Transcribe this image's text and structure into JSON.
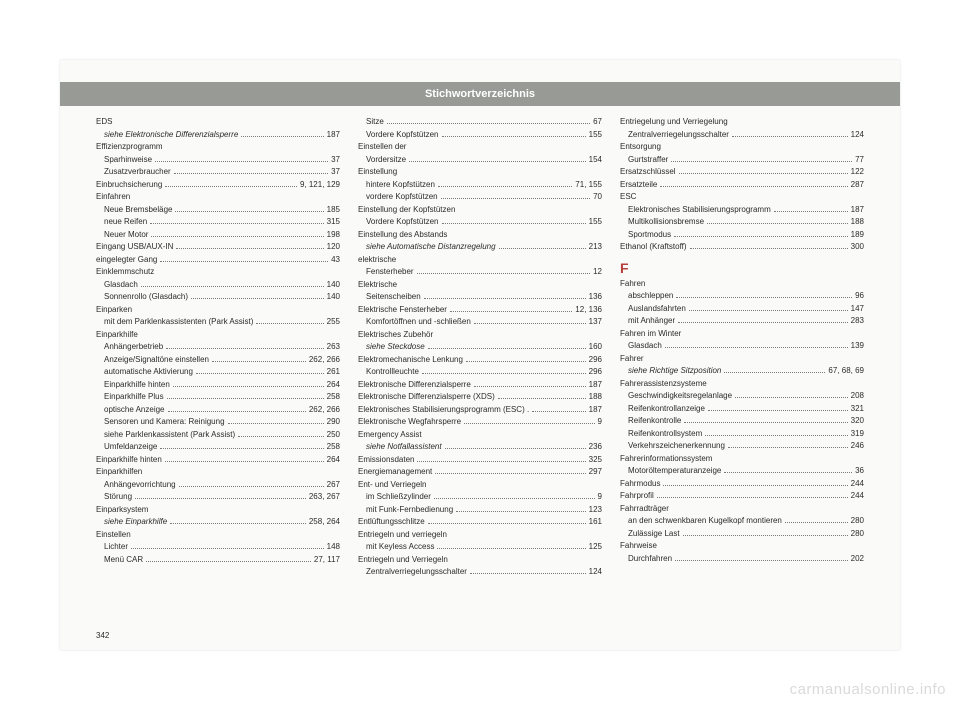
{
  "header": {
    "title": "Stichwortverzeichnis"
  },
  "pageNumber": "342",
  "watermark": "carmanualsonline.info",
  "sectionLetter": "F",
  "columns": [
    [
      {
        "t": "head",
        "label": "EDS"
      },
      {
        "t": "sub",
        "italic": true,
        "label": "siehe Elektronische Differenzialsperre",
        "pg": "187"
      },
      {
        "t": "head",
        "label": "Effizienzprogramm"
      },
      {
        "t": "sub",
        "label": "Sparhinweise",
        "pg": "37"
      },
      {
        "t": "sub",
        "label": "Zusatzverbraucher",
        "pg": "37"
      },
      {
        "t": "row",
        "label": "Einbruchsicherung",
        "pg": "9, 121, 129"
      },
      {
        "t": "head",
        "label": "Einfahren"
      },
      {
        "t": "sub",
        "label": "Neue Bremsbeläge",
        "pg": "185"
      },
      {
        "t": "sub",
        "label": "neue Reifen",
        "pg": "315"
      },
      {
        "t": "sub",
        "label": "Neuer Motor",
        "pg": "198"
      },
      {
        "t": "row",
        "label": "Eingang USB/AUX-IN",
        "pg": "120"
      },
      {
        "t": "row",
        "label": "eingelegter Gang",
        "pg": "43"
      },
      {
        "t": "head",
        "label": "Einklemmschutz"
      },
      {
        "t": "sub",
        "label": "Glasdach",
        "pg": "140"
      },
      {
        "t": "sub",
        "label": "Sonnenrollo (Glasdach)",
        "pg": "140"
      },
      {
        "t": "head",
        "label": "Einparken"
      },
      {
        "t": "sub",
        "label": "mit dem Parklenkassistenten (Park Assist)",
        "pg": "255"
      },
      {
        "t": "head",
        "label": "Einparkhilfe"
      },
      {
        "t": "sub",
        "label": "Anhängerbetrieb",
        "pg": "263"
      },
      {
        "t": "sub",
        "label": "Anzeige/Signaltöne einstellen",
        "pg": "262, 266"
      },
      {
        "t": "sub",
        "label": "automatische Aktivierung",
        "pg": "261"
      },
      {
        "t": "sub",
        "label": "Einparkhilfe hinten",
        "pg": "264"
      },
      {
        "t": "sub",
        "label": "Einparkhilfe Plus",
        "pg": "258"
      },
      {
        "t": "sub",
        "label": "optische Anzeige",
        "pg": "262, 266"
      },
      {
        "t": "sub",
        "label": "Sensoren und Kamera: Reinigung",
        "pg": "290"
      },
      {
        "t": "sub",
        "label": "siehe Parklenkassistent (Park Assist)",
        "pg": "250"
      },
      {
        "t": "sub",
        "label": "Umfeldanzeige",
        "pg": "258"
      },
      {
        "t": "row",
        "label": "Einparkhilfe hinten",
        "pg": "264"
      },
      {
        "t": "head",
        "label": "Einparkhilfen"
      },
      {
        "t": "sub",
        "label": "Anhängevorrichtung",
        "pg": "267"
      },
      {
        "t": "sub",
        "label": "Störung",
        "pg": "263, 267"
      },
      {
        "t": "head",
        "label": "Einparksystem"
      },
      {
        "t": "sub",
        "italic": true,
        "label": "siehe Einparkhilfe",
        "pg": "258, 264"
      },
      {
        "t": "head",
        "label": "Einstellen"
      },
      {
        "t": "sub",
        "label": "Lichter",
        "pg": "148"
      },
      {
        "t": "sub",
        "label": "Menü CAR",
        "pg": "27, 117"
      }
    ],
    [
      {
        "t": "sub",
        "label": "Sitze",
        "pg": "67"
      },
      {
        "t": "sub",
        "label": "Vordere Kopfstützen",
        "pg": "155"
      },
      {
        "t": "head",
        "label": "Einstellen der"
      },
      {
        "t": "sub",
        "label": "Vordersitze",
        "pg": "154"
      },
      {
        "t": "head",
        "label": "Einstellung"
      },
      {
        "t": "sub",
        "label": "hintere Kopfstützen",
        "pg": "71, 155"
      },
      {
        "t": "sub",
        "label": "vordere Kopfstützen",
        "pg": "70"
      },
      {
        "t": "head",
        "label": "Einstellung der Kopfstützen"
      },
      {
        "t": "sub",
        "label": "Vordere Kopfstützen",
        "pg": "155"
      },
      {
        "t": "head",
        "label": "Einstellung des Abstands"
      },
      {
        "t": "sub",
        "italic": true,
        "label": "siehe Automatische Distanzregelung",
        "pg": "213"
      },
      {
        "t": "head",
        "label": "elektrische"
      },
      {
        "t": "sub",
        "label": "Fensterheber",
        "pg": "12"
      },
      {
        "t": "head",
        "label": "Elektrische"
      },
      {
        "t": "sub",
        "label": "Seitenscheiben",
        "pg": "136"
      },
      {
        "t": "row",
        "label": "Elektrische Fensterheber",
        "pg": "12, 136"
      },
      {
        "t": "sub",
        "label": "Komfortöffnen und -schließen",
        "pg": "137"
      },
      {
        "t": "head",
        "label": "Elektrisches Zubehör"
      },
      {
        "t": "sub",
        "italic": true,
        "label": "siehe Steckdose",
        "pg": "160"
      },
      {
        "t": "row",
        "label": "Elektromechanische Lenkung",
        "pg": "296"
      },
      {
        "t": "sub",
        "label": "Kontrollleuchte",
        "pg": "296"
      },
      {
        "t": "row",
        "label": "Elektronische Differenzialsperre",
        "pg": "187"
      },
      {
        "t": "row",
        "label": "Elektronische Differenzialsperre (XDS)",
        "pg": "188"
      },
      {
        "t": "row",
        "label": "Elektronisches Stabilisierungsprogramm (ESC) .",
        "pg": "187"
      },
      {
        "t": "row",
        "label": "Elektronische Wegfahrsperre",
        "pg": "9"
      },
      {
        "t": "head",
        "label": "Emergency Assist"
      },
      {
        "t": "sub",
        "italic": true,
        "label": "siehe Notfallassistent",
        "pg": "236"
      },
      {
        "t": "row",
        "label": "Emissionsdaten",
        "pg": "325"
      },
      {
        "t": "row",
        "label": "Energiemanagement",
        "pg": "297"
      },
      {
        "t": "head",
        "label": "Ent- und Verriegeln"
      },
      {
        "t": "sub",
        "label": "im Schließzylinder",
        "pg": "9"
      },
      {
        "t": "sub",
        "label": "mit Funk-Fernbedienung",
        "pg": "123"
      },
      {
        "t": "row",
        "label": "Entlüftungsschlitze",
        "pg": "161"
      },
      {
        "t": "head",
        "label": "Entriegeln und verriegeln"
      },
      {
        "t": "sub",
        "label": "mit Keyless Access",
        "pg": "125"
      },
      {
        "t": "head",
        "label": "Entriegeln und Verriegeln"
      },
      {
        "t": "sub",
        "label": "Zentralverriegelungsschalter",
        "pg": "124"
      }
    ],
    [
      {
        "t": "head",
        "label": "Entriegelung und Verriegelung"
      },
      {
        "t": "sub",
        "label": "Zentralverriegelungsschalter",
        "pg": "124"
      },
      {
        "t": "head",
        "label": "Entsorgung"
      },
      {
        "t": "sub",
        "label": "Gurtstraffer",
        "pg": "77"
      },
      {
        "t": "row",
        "label": "Ersatzschlüssel",
        "pg": "122"
      },
      {
        "t": "row",
        "label": "Ersatzteile",
        "pg": "287"
      },
      {
        "t": "head",
        "label": "ESC"
      },
      {
        "t": "sub",
        "label": "Elektronisches Stabilisierungsprogramm",
        "pg": "187"
      },
      {
        "t": "sub",
        "label": "Multikollisionsbremse",
        "pg": "188"
      },
      {
        "t": "sub",
        "label": "Sportmodus",
        "pg": "189"
      },
      {
        "t": "row",
        "label": "Ethanol (Kraftstoff)",
        "pg": "300"
      },
      {
        "t": "letter"
      },
      {
        "t": "head",
        "label": "Fahren"
      },
      {
        "t": "sub",
        "label": "abschleppen",
        "pg": "96"
      },
      {
        "t": "sub",
        "label": "Auslandsfahrten",
        "pg": "147"
      },
      {
        "t": "sub",
        "label": "mit Anhänger",
        "pg": "283"
      },
      {
        "t": "head",
        "label": "Fahren im Winter"
      },
      {
        "t": "sub",
        "label": "Glasdach",
        "pg": "139"
      },
      {
        "t": "head",
        "label": "Fahrer"
      },
      {
        "t": "sub",
        "italic": true,
        "label": "siehe Richtige Sitzposition",
        "pg": "67, 68, 69"
      },
      {
        "t": "head",
        "label": "Fahrerassistenzsysteme"
      },
      {
        "t": "sub",
        "label": "Geschwindigkeitsregelanlage",
        "pg": "208"
      },
      {
        "t": "sub",
        "label": "Reifenkontrollanzeige",
        "pg": "321"
      },
      {
        "t": "sub",
        "label": "Reifenkontrolle",
        "pg": "320"
      },
      {
        "t": "sub",
        "label": "Reifenkontrollsystem",
        "pg": "319"
      },
      {
        "t": "sub",
        "label": "Verkehrszeichenerkennung",
        "pg": "246"
      },
      {
        "t": "head",
        "label": "Fahrerinformationssystem"
      },
      {
        "t": "sub",
        "label": "Motoröltemperaturanzeige",
        "pg": "36"
      },
      {
        "t": "row",
        "label": "Fahrmodus",
        "pg": "244"
      },
      {
        "t": "row",
        "label": "Fahrprofil",
        "pg": "244"
      },
      {
        "t": "head",
        "label": "Fahrradträger"
      },
      {
        "t": "sub",
        "label": "an den schwenkbaren Kugelkopf montieren",
        "pg": "280"
      },
      {
        "t": "sub",
        "label": "Zulässige Last",
        "pg": "280"
      },
      {
        "t": "head",
        "label": "Fahrweise"
      },
      {
        "t": "sub",
        "label": "Durchfahren",
        "pg": "202"
      }
    ]
  ]
}
